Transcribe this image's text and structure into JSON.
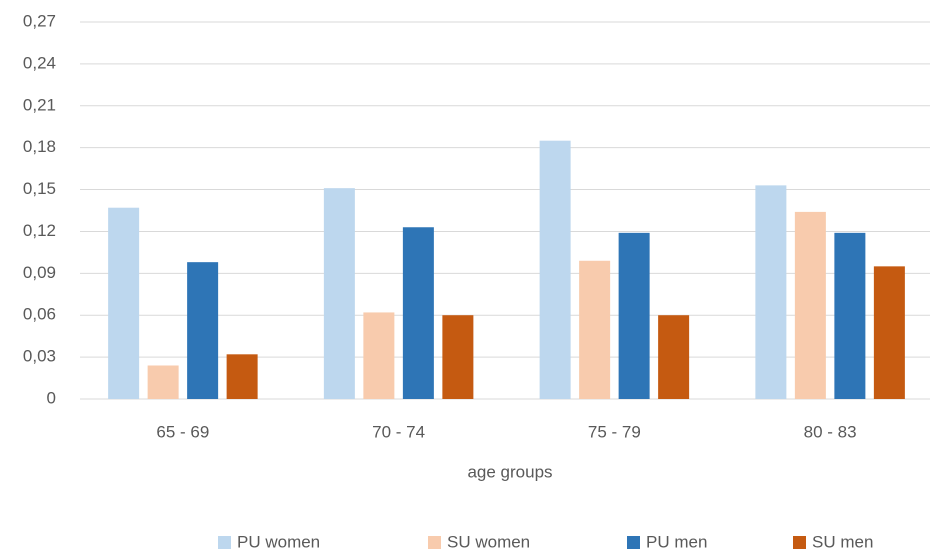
{
  "chart_data": {
    "type": "bar",
    "x_label": "age groups",
    "categories": [
      "65 - 69",
      "70 - 74",
      "75 - 79",
      "80 - 83"
    ],
    "series": [
      {
        "name": "PU women",
        "color": "#bdd7ee",
        "values": [
          0.137,
          0.151,
          0.185,
          0.153
        ]
      },
      {
        "name": "SU women",
        "color": "#f8cbad",
        "values": [
          0.024,
          0.062,
          0.099,
          0.134
        ]
      },
      {
        "name": "PU men",
        "color": "#2e75b6",
        "values": [
          0.098,
          0.123,
          0.119,
          0.119
        ]
      },
      {
        "name": "SU men",
        "color": "#c55a11",
        "values": [
          0.032,
          0.06,
          0.06,
          0.095
        ]
      }
    ],
    "ylim": [
      0,
      0.27
    ],
    "yticks": [
      0,
      {
        "value": 0.03,
        "label": "0,03"
      },
      {
        "value": 0.06,
        "label": "0,06"
      },
      {
        "value": 0.09,
        "label": "0,09"
      },
      {
        "value": 0.12,
        "label": "0,12"
      },
      {
        "value": 0.15,
        "label": "0,15"
      },
      {
        "value": 0.18,
        "label": "0,18"
      },
      {
        "value": 0.21,
        "label": "0,21"
      },
      {
        "value": 0.24,
        "label": "0,24"
      },
      {
        "value": 0.27,
        "label": "0,27"
      }
    ],
    "grid": true,
    "legend": "bottom"
  }
}
